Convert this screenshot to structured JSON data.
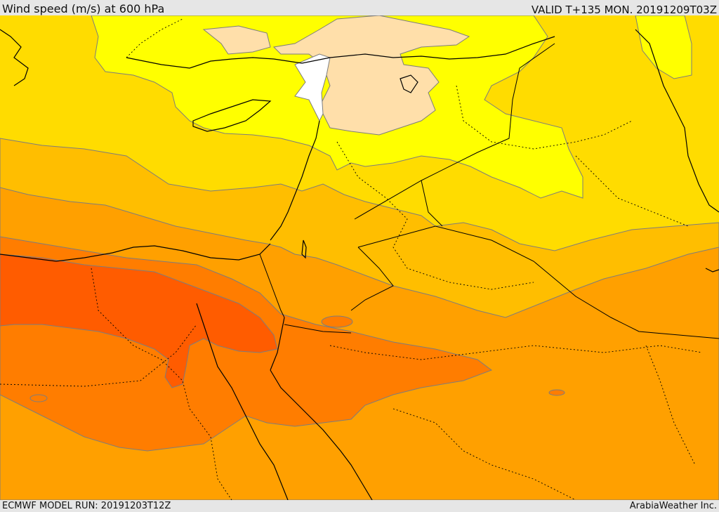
{
  "header": {
    "title": "Wind speed (m/s) at 600 hPa",
    "valid": "VALID T+135 MON. 20191209T03Z"
  },
  "footer": {
    "model_run": "ECMWF MODEL RUN: 20191203T12Z",
    "credit": "ArabiaWeather Inc."
  },
  "colors": {
    "band_white": "#ffffff",
    "band_peach": "#ffdfaa",
    "band_yellow": "#ffff00",
    "band_gold": "#ffdc00",
    "band_amber": "#ffbe00",
    "band_orange": "#ffa000",
    "band_dark_orange": "#ff7d00",
    "band_red_orange": "#ff5c00",
    "contour_line": "#7d7d7d",
    "coastline": "#000000",
    "border": "#000000"
  }
}
